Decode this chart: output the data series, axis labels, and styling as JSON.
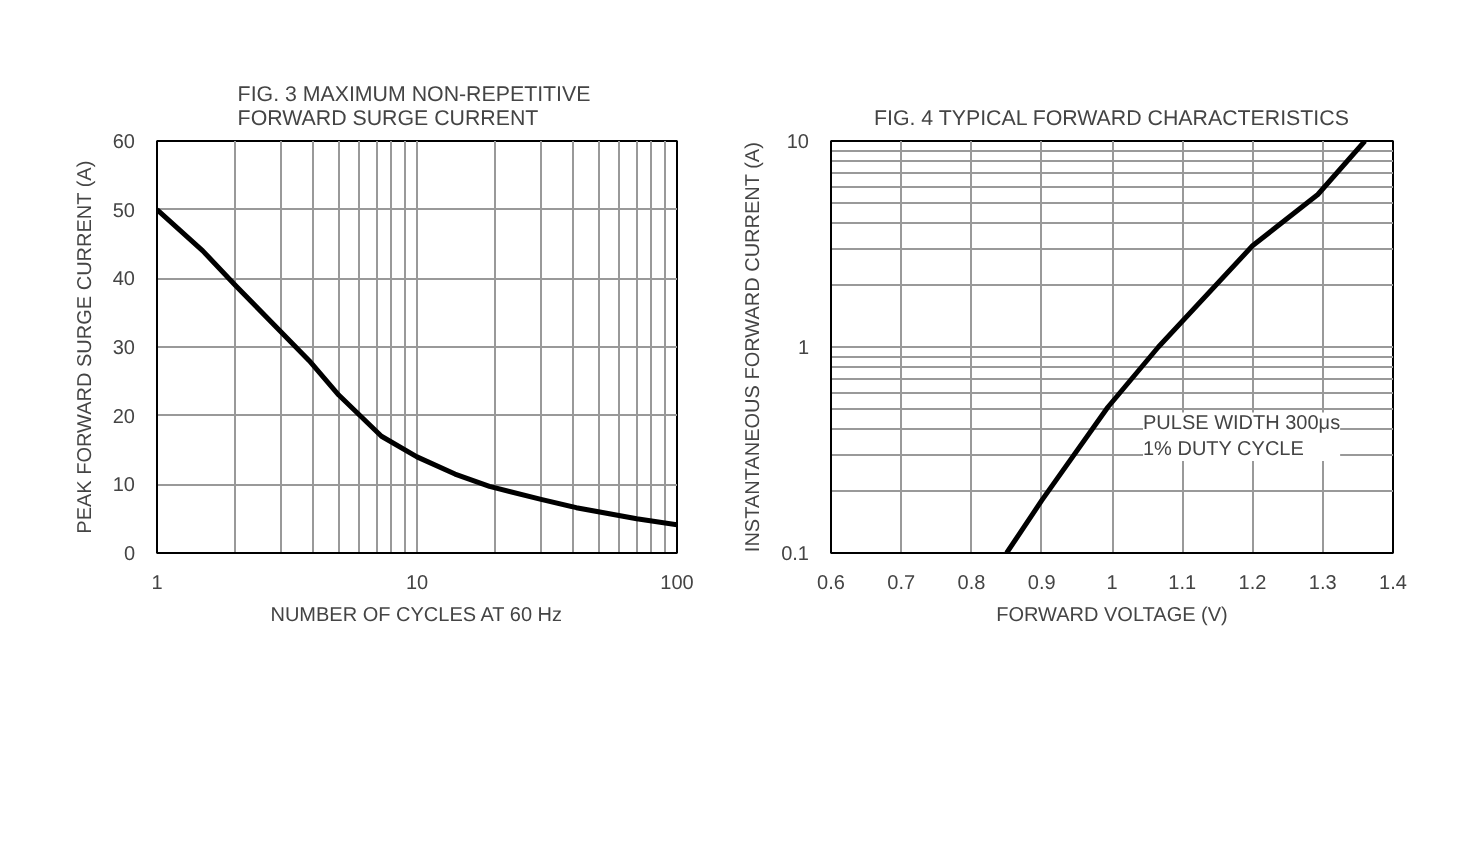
{
  "chart_data": [
    {
      "type": "line",
      "title": "FIG. 3 MAXIMUM  NON-REPETITIVE\nFORWARD SURGE CURRENT",
      "xlabel": "NUMBER OF CYCLES AT 60 Hz",
      "ylabel": "PEAK FORWARD SURGE CURRENT (A)",
      "log": "x",
      "grid": true,
      "xlim": [
        1,
        100
      ],
      "xticks": [
        1,
        10,
        100
      ],
      "ylim": [
        0,
        60
      ],
      "yticks": [
        0,
        10,
        20,
        30,
        40,
        50,
        60
      ],
      "series": [
        {
          "color": "#000000",
          "x": [
            1,
            1.5,
            2,
            3.85,
            5,
            7.3,
            10,
            14,
            19,
            30,
            41,
            70,
            100
          ],
          "values": [
            50,
            44,
            39,
            28,
            23,
            17,
            14,
            11.5,
            9.7,
            7.8,
            6.6,
            5,
            4.1
          ]
        }
      ]
    },
    {
      "type": "line",
      "title": "FIG. 4 TYPICAL FORWARD CHARACTERISTICS",
      "xlabel": "FORWARD VOLTAGE (V)",
      "ylabel": "INSTANTANEOUS FORWARD CURRENT (A)",
      "log": "y",
      "grid": true,
      "xlim": [
        0.6,
        1.4
      ],
      "xticks": [
        0.6,
        0.7,
        0.8,
        0.9,
        1,
        1.1,
        1.2,
        1.3,
        1.4
      ],
      "ylim": [
        0.1,
        10
      ],
      "yticks": [
        0.1,
        1,
        10
      ],
      "annotations": [
        "PULSE WIDTH 300μs\n1% DUTY CYCLE"
      ],
      "series": [
        {
          "color": "#000000",
          "x": [
            0.85,
            0.9,
            0.994,
            1.066,
            1.2,
            1.293,
            1.36
          ],
          "values": [
            0.1,
            0.18,
            0.51,
            1,
            3.1,
            5.5,
            10
          ]
        }
      ]
    }
  ]
}
